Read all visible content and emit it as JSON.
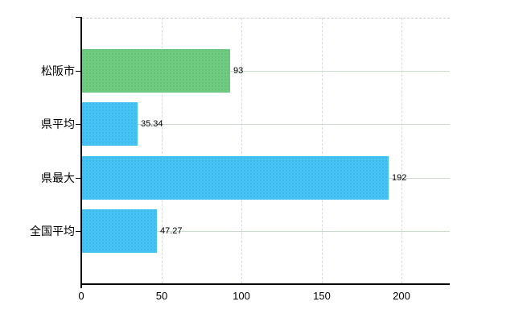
{
  "chart_data": {
    "type": "bar",
    "orientation": "horizontal",
    "title": "",
    "xlabel": "",
    "ylabel": "",
    "categories": [
      "松阪市",
      "県平均",
      "県最大",
      "全国平均"
    ],
    "values": [
      93,
      35.34,
      192,
      47.27
    ],
    "value_labels": [
      "93",
      "35.34",
      "192",
      "47.27"
    ],
    "bar_colors": [
      "#6ecb80",
      "#44c3f4",
      "#44c3f4",
      "#44c3f4"
    ],
    "xlim": [
      0,
      230
    ],
    "x_ticks": [
      0,
      50,
      100,
      150,
      200
    ],
    "x_tick_labels": [
      "0",
      "50",
      "100",
      "150",
      "200"
    ],
    "grid": true,
    "legend": false,
    "colors": {
      "green_bar": "#6ecb80",
      "blue_bar": "#44c3f4",
      "axis": "#000000",
      "horizontal_grid": "#ccd9cc",
      "vertical_grid": "#d7d7e2",
      "top_border_dashed": "#c9c9c9",
      "text": "#000000",
      "background": "#ffffff"
    }
  }
}
